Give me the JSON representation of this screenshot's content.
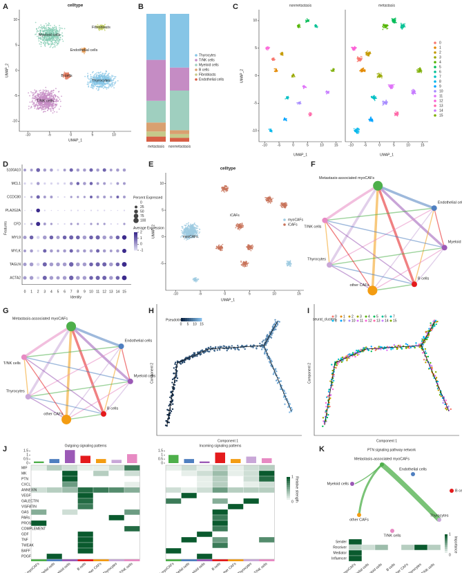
{
  "panel_labels": [
    "A",
    "B",
    "C",
    "D",
    "E",
    "F",
    "G",
    "H",
    "I",
    "J",
    "K"
  ],
  "cell_types": [
    {
      "name": "Metastasis-associated myoCAFs",
      "color": "#4daf4a"
    },
    {
      "name": "Endothelial cells",
      "color": "#4f7fc0"
    },
    {
      "name": "Myeloid cells",
      "color": "#9b59b6"
    },
    {
      "name": "B cells",
      "color": "#e41a1c"
    },
    {
      "name": "other CAFs",
      "color": "#f39c12"
    },
    {
      "name": "Thyrocytes",
      "color": "#c9a7d8"
    },
    {
      "name": "T/NK cells",
      "color": "#e78ac3"
    }
  ],
  "a": {
    "title": "celltype",
    "xlabel": "UMAP_1",
    "ylabel": "UMAP_2",
    "xlim": [
      -12,
      14
    ],
    "ylim": [
      -12,
      12
    ],
    "xticks": [
      -10,
      -5,
      0,
      5,
      10
    ],
    "yticks": [
      -10,
      -5,
      0,
      5,
      10
    ],
    "clusters": [
      "Myeloid cells",
      "Fibroblasts",
      "Endothelial cells",
      "B cells",
      "Thyrocytes",
      "T/NK cells"
    ]
  },
  "b": {
    "categories": [
      "metastasis",
      "nonmetastasis"
    ],
    "series": [
      {
        "name": "Thyrocytes",
        "color": "#86c5e6",
        "values": [
          36,
          42
        ]
      },
      {
        "name": "T/NK cells",
        "color": "#c58cc4",
        "values": [
          32,
          18
        ]
      },
      {
        "name": "Myeloid cells",
        "color": "#9fcfbf",
        "values": [
          17,
          31
        ]
      },
      {
        "name": "B cells",
        "color": "#d9a070",
        "values": [
          7,
          3
        ]
      },
      {
        "name": "Fibroblasts",
        "color": "#c5c98a",
        "values": [
          4,
          3
        ]
      },
      {
        "name": "Endothelial cells",
        "color": "#d85f45",
        "values": [
          4,
          3
        ]
      }
    ]
  },
  "c": {
    "titles": [
      "nonmetastasis",
      "metastasis"
    ],
    "xlabel": "UMAP_1",
    "ylabel": "UMAP_2",
    "xlim": [
      -12,
      17
    ],
    "ylim": [
      -12,
      12
    ],
    "xticks": [
      -10,
      -5,
      0,
      5,
      10,
      15
    ],
    "yticks": [
      -10,
      -5,
      0,
      5,
      10
    ],
    "clusters": [
      "0",
      "1",
      "2",
      "3",
      "4",
      "5",
      "6",
      "7",
      "8",
      "9",
      "10",
      "11",
      "12",
      "13",
      "14",
      "15"
    ],
    "colors": [
      "#f8766d",
      "#e38900",
      "#c49a00",
      "#99a800",
      "#53b400",
      "#00bc56",
      "#00c094",
      "#00bfc4",
      "#00b6eb",
      "#06a4ff",
      "#a58aff",
      "#df70f8",
      "#fb61d7",
      "#ff66a8",
      "#c77cff",
      "#7cae00"
    ]
  },
  "d": {
    "xlabel": "Identity",
    "ylabel": "Features",
    "genes": [
      "S100A10",
      "MCL1",
      "CCDC80",
      "PLA2G2A",
      "CFD",
      "MYL9",
      "MYLK",
      "TAGLN",
      "ACTA2"
    ],
    "identities": [
      "0",
      "1",
      "2",
      "3",
      "4",
      "5",
      "6",
      "7",
      "8",
      "9",
      "10",
      "11",
      "12",
      "13",
      "14",
      "15"
    ],
    "size_title": "Percent Expressed",
    "size_legend": [
      0,
      25,
      50,
      75,
      100
    ],
    "color_title": "Average Expression",
    "color_legend": [
      2,
      1,
      0,
      -1
    ],
    "pct": [
      [
        30,
        30,
        60,
        40,
        40,
        20,
        30,
        50,
        40,
        40,
        50,
        40,
        50,
        30,
        40,
        40
      ],
      [
        20,
        20,
        40,
        20,
        20,
        20,
        20,
        40,
        40,
        40,
        40,
        30,
        30,
        20,
        30,
        30
      ],
      [
        10,
        20,
        50,
        30,
        30,
        10,
        10,
        20,
        20,
        20,
        30,
        30,
        30,
        20,
        30,
        30
      ],
      [
        5,
        10,
        60,
        10,
        5,
        5,
        5,
        10,
        10,
        5,
        10,
        10,
        10,
        5,
        5,
        10
      ],
      [
        10,
        20,
        70,
        30,
        20,
        10,
        10,
        20,
        20,
        10,
        20,
        20,
        20,
        10,
        10,
        20
      ],
      [
        50,
        60,
        40,
        60,
        60,
        50,
        60,
        70,
        60,
        60,
        60,
        70,
        60,
        50,
        60,
        80
      ],
      [
        30,
        40,
        20,
        50,
        40,
        30,
        40,
        50,
        40,
        40,
        40,
        50,
        40,
        30,
        40,
        70
      ],
      [
        50,
        60,
        40,
        70,
        60,
        60,
        60,
        80,
        60,
        60,
        60,
        70,
        70,
        60,
        60,
        90
      ],
      [
        50,
        60,
        30,
        70,
        60,
        50,
        60,
        80,
        60,
        60,
        60,
        70,
        70,
        60,
        60,
        90
      ]
    ],
    "avg": [
      [
        0,
        0,
        1,
        0,
        0,
        -1,
        0,
        1,
        0,
        0,
        1,
        0,
        1,
        0,
        0,
        0
      ],
      [
        -1,
        -1,
        0,
        -1,
        -1,
        -1,
        -1,
        0,
        1,
        0,
        1,
        0,
        0,
        -1,
        0,
        0
      ],
      [
        -1,
        0,
        1,
        0,
        0,
        -1,
        -1,
        0,
        0,
        0,
        1,
        0,
        0,
        0,
        1,
        0
      ],
      [
        -1,
        -1,
        2,
        -1,
        -1,
        -1,
        -1,
        -1,
        -1,
        -1,
        -1,
        -1,
        -1,
        -1,
        -1,
        -1
      ],
      [
        -1,
        0,
        2,
        0,
        0,
        -1,
        -1,
        0,
        0,
        -1,
        0,
        0,
        0,
        -1,
        -1,
        0
      ],
      [
        0,
        1,
        -1,
        0,
        1,
        0,
        1,
        1,
        1,
        0,
        1,
        1,
        0,
        0,
        1,
        2
      ],
      [
        0,
        0,
        -1,
        1,
        0,
        0,
        0,
        1,
        0,
        0,
        0,
        1,
        0,
        0,
        0,
        2
      ],
      [
        0,
        0,
        -1,
        1,
        0,
        0,
        0,
        1,
        0,
        0,
        1,
        1,
        1,
        0,
        1,
        2
      ],
      [
        0,
        0,
        -1,
        1,
        0,
        0,
        0,
        1,
        0,
        0,
        1,
        1,
        1,
        0,
        1,
        2
      ]
    ]
  },
  "e": {
    "title": "celltype",
    "xlabel": "UMAP_1",
    "ylabel": "UMAP_2",
    "xlim": [
      -12,
      16
    ],
    "ylim": [
      -10,
      12
    ],
    "xticks": [
      -10,
      -5,
      0,
      5,
      10,
      15
    ],
    "yticks": [
      -5,
      0,
      5,
      10
    ],
    "labels": [
      {
        "name": "myoCAFs",
        "color": "#9ecae1"
      },
      {
        "name": "iCAFs",
        "color": "#c8735a"
      }
    ]
  },
  "h": {
    "legend_title": "Pseudotime",
    "legend_ticks": [
      0,
      5,
      10,
      15
    ],
    "xlabel": "Component 1",
    "ylabel": "Component 2"
  },
  "i": {
    "legend_title": "seurat_clusters",
    "xlabel": "Component 1",
    "ylabel": "Component 2"
  },
  "j": {
    "rows": [
      "MIF",
      "MK",
      "PTN",
      "CXCL",
      "ANNEXIN",
      "VEGF",
      "GALECTIN",
      "VISFATIN",
      "GAS",
      "PARs",
      "PROS",
      "COMPLEMENT",
      "GDF",
      "TNF",
      "TWEAK",
      "BAFF",
      "PDGF"
    ],
    "legend_title": "Relative strength",
    "legend_ticks": [
      1,
      0
    ],
    "bar_lim": [
      0,
      1.7
    ],
    "bar_ticks": [
      0,
      0.5,
      1,
      1.5
    ],
    "outgoing": {
      "title": "Outgoing signaling patterns",
      "totals": [
        0.2,
        0.5,
        1.6,
        0.9,
        0.5,
        0.4,
        1.1
      ],
      "values": [
        [
          0.1,
          0.3,
          0.2,
          0.1,
          0.1,
          0.2,
          0.8
        ],
        [
          0,
          0,
          1,
          0,
          0.3,
          0,
          0.2
        ],
        [
          0,
          0,
          1,
          0,
          0,
          0,
          0
        ],
        [
          0,
          0,
          0.6,
          0,
          0,
          0,
          0.1
        ],
        [
          0.2,
          0.3,
          0.4,
          0.9,
          0.8,
          0.7,
          0.5
        ],
        [
          0,
          0,
          0,
          1,
          0,
          0,
          0
        ],
        [
          0,
          0,
          0,
          0.9,
          0,
          0,
          0
        ],
        [
          0,
          0,
          0,
          0.8,
          0,
          0,
          0
        ],
        [
          0.5,
          0,
          0.2,
          0,
          0,
          0,
          0.6
        ],
        [
          0,
          0,
          0,
          0,
          0,
          1,
          0
        ],
        [
          1,
          0,
          0,
          0,
          0,
          0,
          0
        ],
        [
          0,
          0,
          0,
          0,
          0,
          0,
          0.9
        ],
        [
          0,
          0,
          0,
          1,
          0,
          0,
          0
        ],
        [
          0,
          0,
          0,
          1,
          0,
          0,
          0
        ],
        [
          0,
          0,
          0,
          1,
          0,
          0,
          0
        ],
        [
          0,
          0,
          0,
          1,
          0,
          0,
          0
        ],
        [
          0,
          1,
          0,
          0,
          0,
          0,
          0
        ]
      ]
    },
    "incoming": {
      "title": "Incoming signaling patterns",
      "totals": [
        1.0,
        0.5,
        0.2,
        1.3,
        0.5,
        0.8,
        0.6
      ],
      "values": [
        [
          0.1,
          0.2,
          0.1,
          0.3,
          0.1,
          0.2,
          0.3
        ],
        [
          0,
          0.1,
          0.2,
          0.4,
          0.1,
          0.2,
          1
        ],
        [
          0,
          0,
          0.1,
          0.3,
          0,
          0.2,
          0.9
        ],
        [
          0,
          0,
          0.1,
          0.3,
          0,
          0.1,
          0.2
        ],
        [
          0.2,
          0.1,
          0.2,
          0.6,
          0.3,
          0.3,
          0.3
        ],
        [
          0,
          1,
          0,
          0,
          0,
          0,
          0
        ],
        [
          0.8,
          0,
          0,
          0.5,
          0,
          1,
          0
        ],
        [
          0,
          0,
          0,
          0,
          1,
          0,
          0
        ],
        [
          0,
          0,
          0,
          1,
          0,
          0,
          0
        ],
        [
          0,
          0,
          0,
          0.8,
          0,
          0,
          0
        ],
        [
          0,
          0,
          0,
          1,
          0,
          0,
          0
        ],
        [
          0,
          0,
          0,
          0.8,
          0,
          0,
          0
        ],
        [
          0,
          0,
          1,
          0,
          0,
          0,
          0
        ],
        [
          0,
          1,
          0,
          0.6,
          0,
          0,
          0.7
        ],
        [
          0,
          0,
          0,
          0.8,
          0,
          0,
          0
        ],
        [
          1,
          0,
          0,
          0,
          0,
          0,
          0
        ],
        [
          0,
          0,
          1,
          0,
          0,
          0,
          0
        ]
      ]
    }
  },
  "k": {
    "title": "PTN signaling pathway network",
    "rows": [
      "Sender",
      "Receiver",
      "Mediator",
      "Influencer"
    ],
    "values": [
      [
        1,
        0,
        0,
        0,
        0,
        0,
        0
      ],
      [
        0.3,
        0.2,
        0.4,
        0,
        0.3,
        1,
        0.3
      ],
      [
        1,
        0,
        0,
        0,
        0,
        0,
        0
      ],
      [
        1,
        0,
        0,
        0,
        0,
        0,
        0
      ]
    ],
    "legend_title": "Importance",
    "legend_ticks": [
      1,
      0
    ]
  }
}
